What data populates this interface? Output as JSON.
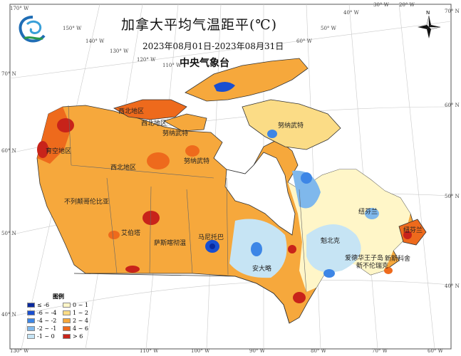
{
  "title": "加拿大平均气温距平(℃)",
  "subtitle": "2023年08月01日-2023年08月31日",
  "agency": "中央气象台",
  "compass_label": "N",
  "longitude_ticks_top": [
    "170° W",
    "150° W",
    "140° W",
    "130° W",
    "120° W",
    "110° W",
    "50° W",
    "40° W",
    "30° W",
    "20° W",
    "60° W"
  ],
  "longitude_ticks_bottom": [
    "130° W",
    "110° W",
    "100° W",
    "90° W",
    "80° W",
    "70° W",
    "60° W"
  ],
  "latitude_ticks_left": [
    "70° N",
    "60° N",
    "50° N",
    "40° N"
  ],
  "latitude_ticks_right": [
    "70° N",
    "60° N",
    "50° N",
    "40° N"
  ],
  "regions": {
    "nw1": "西北地区",
    "nw2": "西北地区",
    "nw3": "西北地区",
    "yukon": "育空地区",
    "nunavut1": "努纳武特",
    "nunavut2": "努纳武特",
    "nunavut3": "努纳武特",
    "bc": "不列颠哥伦比亚",
    "alberta": "艾伯塔",
    "saskatchewan": "萨斯喀彻温",
    "manitoba": "马尼托巴",
    "ontario": "安大略",
    "quebec": "魁北克",
    "labrador": "纽芬兰",
    "newfoundland": "纽芬兰",
    "pei": "爱德华王子岛",
    "nb": "新不伦瑞克",
    "ns": "新斯科舍"
  },
  "legend": {
    "title": "图例",
    "items": [
      {
        "label": "≤ -6",
        "color": "#0a2a9e"
      },
      {
        "label": "-6 ~ -4",
        "color": "#1a4fd0"
      },
      {
        "label": "-4 ~ -2",
        "color": "#3d86e6"
      },
      {
        "label": "-2 ~ -1",
        "color": "#7fb8ec"
      },
      {
        "label": "-1 ~ 0",
        "color": "#c6e4f4"
      },
      {
        "label": "0 ~ 1",
        "color": "#fff6c8"
      },
      {
        "label": "1 ~ 2",
        "color": "#fbdc86"
      },
      {
        "label": "2 ~ 4",
        "color": "#f6a83c"
      },
      {
        "label": "4 ~ 6",
        "color": "#ee6a1c"
      },
      {
        "label": "> 6",
        "color": "#c8231a"
      }
    ]
  }
}
